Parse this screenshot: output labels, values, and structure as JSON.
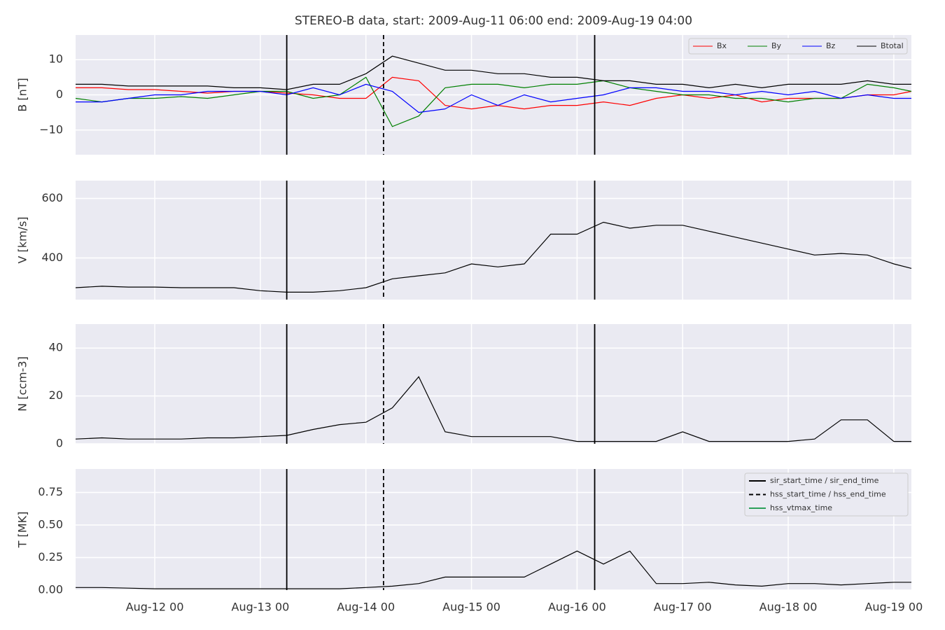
{
  "title": "STEREO-B data, start: 2009-Aug-11 06:00  end: 2009-Aug-19 04:00",
  "x": [
    "Aug-11 06",
    "Aug-11 12",
    "Aug-11 18",
    "Aug-12 00",
    "Aug-12 06",
    "Aug-12 12",
    "Aug-12 18",
    "Aug-13 00",
    "Aug-13 06",
    "Aug-13 12",
    "Aug-13 18",
    "Aug-14 00",
    "Aug-14 06",
    "Aug-14 12",
    "Aug-14 18",
    "Aug-15 00",
    "Aug-15 06",
    "Aug-15 12",
    "Aug-15 18",
    "Aug-16 00",
    "Aug-16 06",
    "Aug-16 12",
    "Aug-16 18",
    "Aug-17 00",
    "Aug-17 06",
    "Aug-17 12",
    "Aug-17 18",
    "Aug-18 00",
    "Aug-18 06",
    "Aug-18 12",
    "Aug-18 18",
    "Aug-19 00",
    "Aug-19 04"
  ],
  "xlim": [
    "Aug-11 06",
    "Aug-19 04"
  ],
  "xticks": [
    "Aug-12 00",
    "Aug-13 00",
    "Aug-14 00",
    "Aug-15 00",
    "Aug-16 00",
    "Aug-17 00",
    "Aug-18 00",
    "Aug-19 00"
  ],
  "events": [
    {
      "name": "sir_start_time / sir_end_time",
      "style": "solid",
      "color": "#000000",
      "x": [
        "Aug-13 06",
        "Aug-16 04"
      ]
    },
    {
      "name": "hss_start_time / hss_end_time",
      "style": "dashed",
      "color": "#000000",
      "x": [
        "Aug-14 04"
      ]
    },
    {
      "name": "hss_vtmax_time",
      "style": "solid",
      "color": "#2ca05a",
      "x": []
    }
  ],
  "events_legend": "upper right",
  "grid": true,
  "chart_data": [
    {
      "type": "line",
      "ylabel": "B [nT]",
      "ylim": [
        -17,
        17
      ],
      "yticks": [
        {
          "value": -10,
          "label": "−10"
        },
        0,
        10
      ],
      "legend": "upper right",
      "series": [
        {
          "name": "Bx",
          "color": "#ff0000",
          "values": [
            2,
            2,
            1.5,
            1.5,
            1,
            0.5,
            1,
            1,
            0.5,
            0,
            -1,
            -1,
            5,
            4,
            -3,
            -4,
            -3,
            -4,
            -3,
            -3,
            -2,
            -3,
            -1,
            0,
            -1,
            0,
            -2,
            -1,
            -1,
            -1,
            0,
            0,
            1
          ]
        },
        {
          "name": "By",
          "color": "#008000",
          "values": [
            -1,
            -2,
            -1,
            -1,
            -0.5,
            -1,
            0,
            1,
            1,
            -1,
            0,
            5,
            -9,
            -6,
            2,
            3,
            3,
            2,
            3,
            3,
            4,
            2,
            1,
            0,
            0,
            -1,
            -1,
            -2,
            -1,
            -1,
            3,
            2,
            1
          ]
        },
        {
          "name": "Bz",
          "color": "#0000ff",
          "values": [
            -2,
            -2,
            -1,
            0,
            0,
            1,
            1,
            1,
            0,
            2,
            0,
            3,
            1,
            -5,
            -4,
            0,
            -3,
            0,
            -2,
            -1,
            0,
            2,
            2,
            1,
            1,
            0,
            1,
            0,
            1,
            -1,
            0,
            -1,
            -1
          ]
        },
        {
          "name": "Btotal",
          "color": "#000000",
          "values": [
            3,
            3,
            2.5,
            2.5,
            2.5,
            2.5,
            2,
            2,
            1.5,
            3,
            3,
            6,
            11,
            9,
            7,
            7,
            6,
            6,
            5,
            5,
            4,
            4,
            3,
            3,
            2,
            3,
            2,
            3,
            3,
            3,
            4,
            3,
            3
          ]
        }
      ]
    },
    {
      "type": "line",
      "ylabel": "V [km/s]",
      "ylim": [
        260,
        660
      ],
      "yticks": [
        400,
        600
      ],
      "series": [
        {
          "color": "#000000",
          "values": [
            300,
            305,
            302,
            302,
            300,
            300,
            300,
            290,
            285,
            285,
            290,
            300,
            330,
            340,
            350,
            380,
            370,
            380,
            480,
            480,
            520,
            500,
            510,
            510,
            490,
            470,
            450,
            430,
            410,
            415,
            410,
            380,
            365
          ]
        }
      ]
    },
    {
      "type": "line",
      "ylabel": "N [ccm-3]",
      "ylim": [
        0,
        50
      ],
      "yticks": [
        0,
        20,
        40
      ],
      "series": [
        {
          "color": "#000000",
          "values": [
            2,
            2.5,
            2,
            2,
            2,
            2.5,
            2.5,
            3,
            3.5,
            6,
            8,
            9,
            15,
            28,
            5,
            3,
            3,
            3,
            3,
            1,
            1,
            1,
            1,
            5,
            1,
            1,
            1,
            1,
            2,
            10,
            10,
            1,
            1
          ]
        }
      ]
    },
    {
      "type": "line",
      "ylabel": "T [MK]",
      "ylim": [
        0,
        0.93
      ],
      "yticks": [
        {
          "value": 0,
          "label": "0.00"
        },
        0.25,
        {
          "value": 0.5,
          "label": "0.50"
        },
        0.75
      ],
      "series": [
        {
          "color": "#000000",
          "values": [
            0.02,
            0.02,
            0.015,
            0.01,
            0.01,
            0.01,
            0.01,
            0.01,
            0.01,
            0.01,
            0.01,
            0.02,
            0.03,
            0.05,
            0.1,
            0.1,
            0.1,
            0.1,
            0.2,
            0.3,
            0.2,
            0.3,
            0.05,
            0.05,
            0.06,
            0.04,
            0.03,
            0.05,
            0.05,
            0.04,
            0.05,
            0.06,
            0.06
          ]
        }
      ]
    }
  ]
}
